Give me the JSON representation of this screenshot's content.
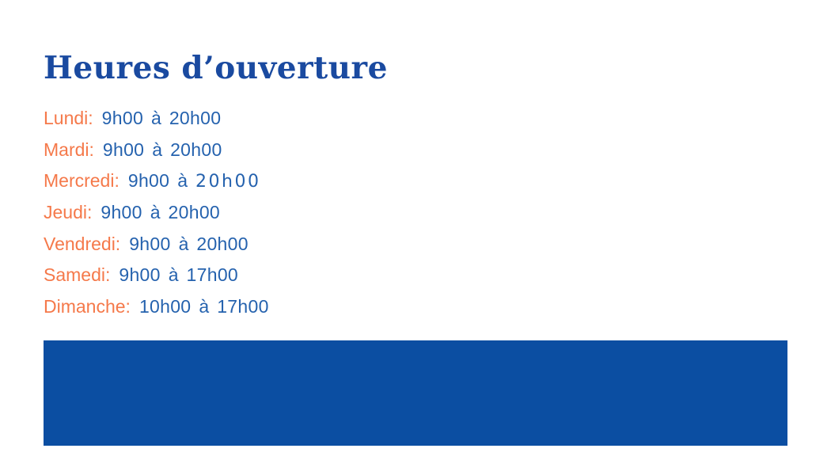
{
  "page": {
    "title": "Heures d’ouverture"
  },
  "hours": {
    "separator": "à",
    "days": [
      {
        "label": "Lundi:",
        "open": "9h00",
        "close": "20h00"
      },
      {
        "label": "Mardi:",
        "open": "9h00",
        "close": "20h00"
      },
      {
        "label": "Mercredi:",
        "open": "9h00",
        "close": "20h00",
        "variant": "wide"
      },
      {
        "label": "Jeudi:",
        "open": "9h00",
        "close": "20h00"
      },
      {
        "label": "Vendredi:",
        "open": "9h00",
        "close": "20h00"
      },
      {
        "label": "Samedi:",
        "open": "9h00",
        "close": "17h00"
      },
      {
        "label": "Dimanche:",
        "open": "10h00",
        "close": "17h00"
      }
    ]
  },
  "colors": {
    "title_blue": "#1A4AA0",
    "day_orange": "#F5794A",
    "time_blue": "#2562AE",
    "banner_blue": "#0B4EA2",
    "background": "#FFFFFF"
  }
}
